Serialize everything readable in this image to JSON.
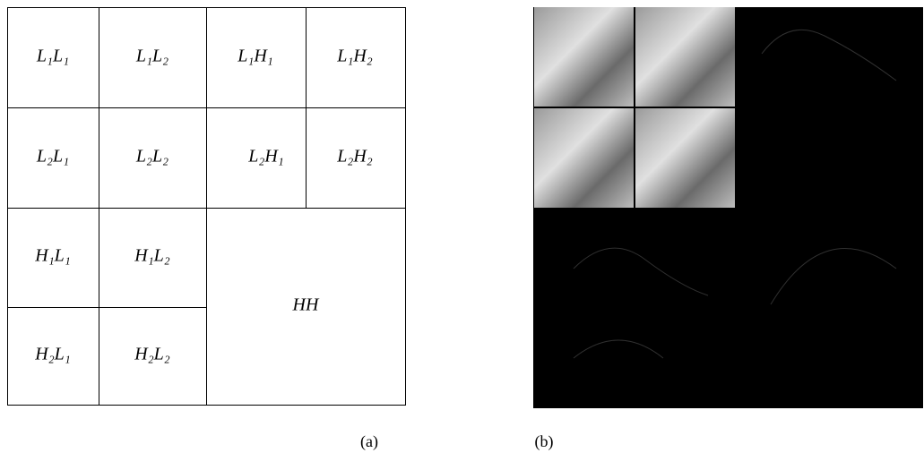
{
  "panel_a": {
    "cells": [
      "L₁L₁",
      "L₁L₂",
      "L₁H₁",
      "L₁H₂",
      "L₂L₁",
      "L₂L₂",
      "L₂H₁",
      "L₂H₂",
      "H₁L₁",
      "H₁L₂",
      "H₂L₁",
      "H₂L₂",
      "HH"
    ]
  },
  "captions": [
    "(a)",
    "(b)"
  ]
}
